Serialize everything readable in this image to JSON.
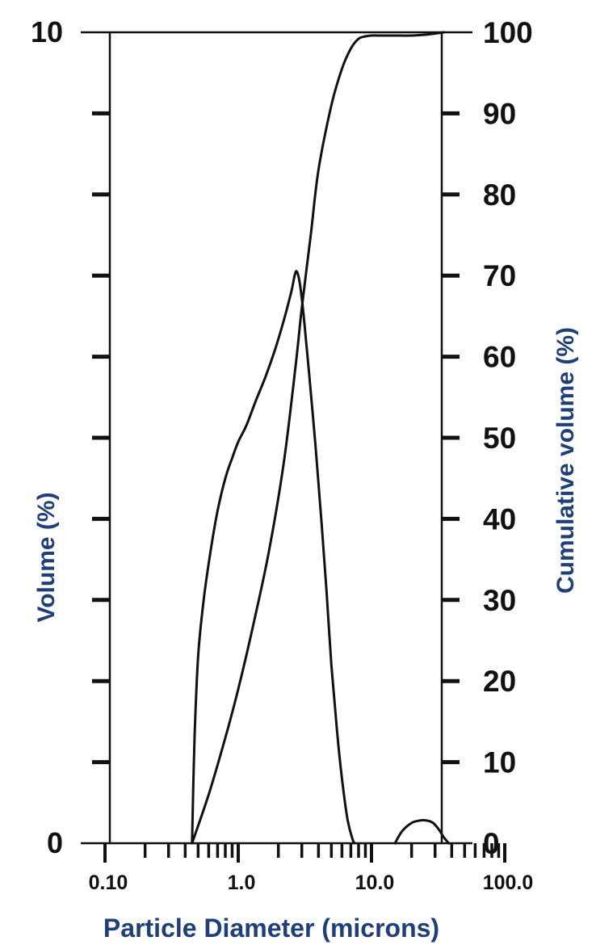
{
  "colors": {
    "ink": "#111111",
    "axis_title": "#1f3f78",
    "background": "#ffffff"
  },
  "chart_data": {
    "type": "line",
    "x_scale": "log",
    "xlim": [
      0.1,
      100
    ],
    "xlabel": "Particle Diameter (microns)",
    "x_tick_labels": [
      {
        "value": 0.1,
        "label": "0.10"
      },
      {
        "value": 1.0,
        "label": "1.0"
      },
      {
        "value": 10.0,
        "label": "10.0"
      },
      {
        "value": 100.0,
        "label": "100.0"
      }
    ],
    "y_left": {
      "label": "Volume (%)",
      "ylim": [
        0,
        10
      ],
      "ticks": [
        0,
        1,
        2,
        3,
        4,
        5,
        6,
        7,
        8,
        9,
        10
      ],
      "tick_labels": [
        {
          "value": 0,
          "label": "0"
        },
        {
          "value": 10,
          "label": "10"
        }
      ]
    },
    "y_right": {
      "label": "Cumulative volume (%)",
      "ylim": [
        0,
        100
      ],
      "tick_labels": [
        {
          "value": 0,
          "label": "0"
        },
        {
          "value": 10,
          "label": "10"
        },
        {
          "value": 20,
          "label": "20"
        },
        {
          "value": 30,
          "label": "30"
        },
        {
          "value": 40,
          "label": "40"
        },
        {
          "value": 50,
          "label": "50"
        },
        {
          "value": 60,
          "label": "60"
        },
        {
          "value": 70,
          "label": "70"
        },
        {
          "value": 80,
          "label": "80"
        },
        {
          "value": 90,
          "label": "90"
        },
        {
          "value": 100,
          "label": "100"
        }
      ]
    },
    "series": [
      {
        "axis": "left",
        "curve": "distribution",
        "x": [
          0.45,
          0.47,
          0.5,
          0.55,
          0.62,
          0.7,
          0.8,
          0.9,
          1.0,
          1.15,
          1.35,
          1.6,
          1.9,
          2.2,
          2.5,
          2.65,
          2.75,
          2.9,
          3.1,
          3.4,
          3.8,
          4.2,
          4.6,
          5.0,
          5.5,
          6.0,
          6.6,
          7.2,
          7.5
        ],
        "y": [
          0.0,
          1.3,
          2.3,
          3.0,
          3.6,
          4.1,
          4.5,
          4.75,
          4.95,
          5.15,
          5.45,
          5.75,
          6.1,
          6.45,
          6.8,
          7.0,
          7.05,
          6.9,
          6.5,
          5.8,
          4.9,
          4.0,
          3.1,
          2.2,
          1.4,
          0.8,
          0.3,
          0.05,
          0.0
        ]
      },
      {
        "axis": "left",
        "curve": "distribution",
        "x": [
          15,
          17,
          20,
          23,
          26,
          29,
          32,
          35,
          38
        ],
        "y": [
          0.0,
          0.15,
          0.25,
          0.28,
          0.28,
          0.25,
          0.17,
          0.07,
          0.0
        ]
      },
      {
        "axis": "right",
        "curve": "cumulative",
        "x": [
          0.45,
          0.6,
          0.8,
          1.0,
          1.3,
          1.7,
          2.2,
          2.7,
          3.0,
          3.5,
          4.0,
          5.0,
          6.0,
          7.0,
          8.0,
          9.0,
          10.0,
          12.0,
          15.0,
          20.0,
          25.0,
          30.0,
          35.0
        ],
        "y": [
          0.0,
          6.0,
          13.0,
          19.0,
          27.0,
          36.0,
          47.0,
          59.0,
          66.0,
          75.0,
          83.0,
          91.0,
          95.5,
          98.0,
          99.2,
          99.5,
          99.6,
          99.6,
          99.6,
          99.6,
          99.7,
          99.85,
          100.0
        ]
      }
    ]
  }
}
